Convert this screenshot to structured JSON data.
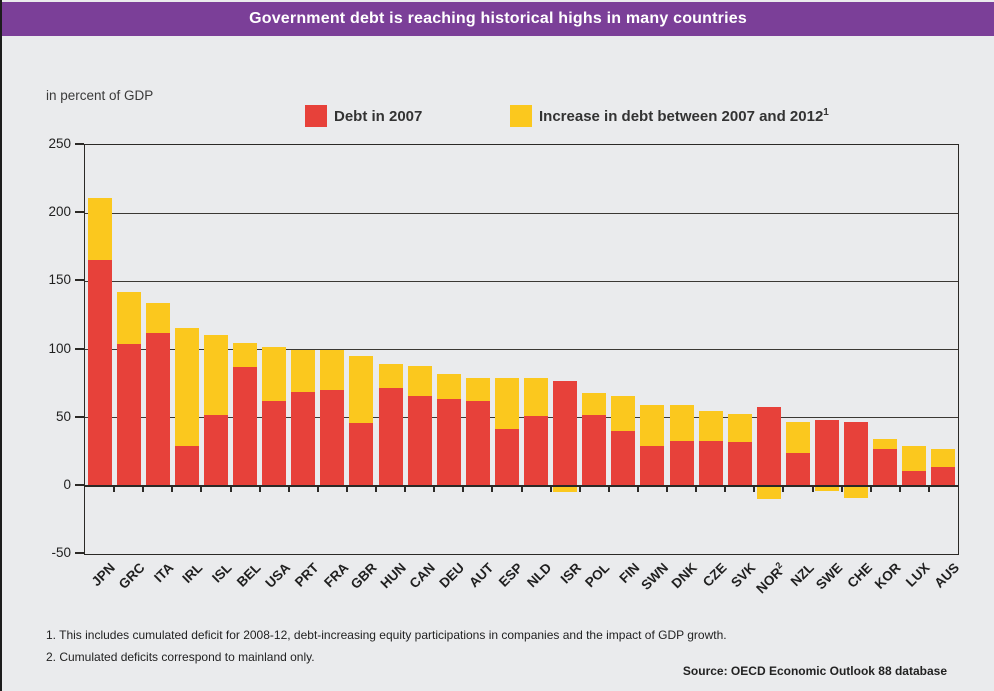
{
  "header": {
    "bg_color": "#7b3f98"
  },
  "chart_data": {
    "type": "bar",
    "stacked": true,
    "title": "Government debt is reaching historical highs in many countries",
    "unit_label": "in percent of GDP",
    "xlabel": "",
    "ylabel": "in percent of GDP",
    "ylim": [
      -50,
      250
    ],
    "yticks": [
      250,
      200,
      150,
      100,
      50,
      0,
      -50
    ],
    "grid": true,
    "legend_position": "top",
    "categories": [
      "JPN",
      "GRC",
      "ITA",
      "IRL",
      "ISL",
      "BEL",
      "USA",
      "PRT",
      "FRA",
      "GBR",
      "HUN",
      "CAN",
      "DEU",
      "AUT",
      "ESP",
      "NLD",
      "ISR",
      "POL",
      "FIN",
      "SWN",
      "DNK",
      "CZE",
      "SVK",
      "NOR",
      "NZL",
      "SWE",
      "CHE",
      "KOR",
      "LUX",
      "AUS"
    ],
    "category_superscripts": {
      "NOR": "2"
    },
    "series": [
      {
        "name": "Debt in 2007",
        "name_sup": "",
        "color": "#e7413a",
        "values": [
          166,
          104,
          112,
          29,
          52,
          87,
          62,
          69,
          70,
          46,
          72,
          66,
          64,
          62,
          42,
          51,
          77,
          52,
          40,
          29,
          33,
          33,
          32,
          58,
          24,
          48,
          47,
          27,
          11,
          14
        ]
      },
      {
        "name": "Increase in debt between 2007 and 2012",
        "name_sup": "1",
        "color": "#fbc81e",
        "values": [
          45,
          38,
          22,
          87,
          59,
          18,
          40,
          31,
          30,
          49,
          17,
          22,
          18,
          17,
          37,
          28,
          -4,
          16,
          26,
          30,
          26,
          22,
          21,
          -9,
          23,
          -3,
          -8,
          7,
          18,
          13
        ]
      }
    ]
  },
  "footnotes": [
    "1. This includes cumulated deficit for 2008-12, debt-increasing equity participations in companies and the impact of GDP growth.",
    "2. Cumulated deficits correspond to mainland only."
  ],
  "source": "Source: OECD Economic Outlook 88 database",
  "colors": {
    "background": "#eaebed",
    "header_bg": "#7b3f98",
    "axis": "#2b2926",
    "debt_2007": "#e7413a",
    "increase": "#fbc81e"
  }
}
